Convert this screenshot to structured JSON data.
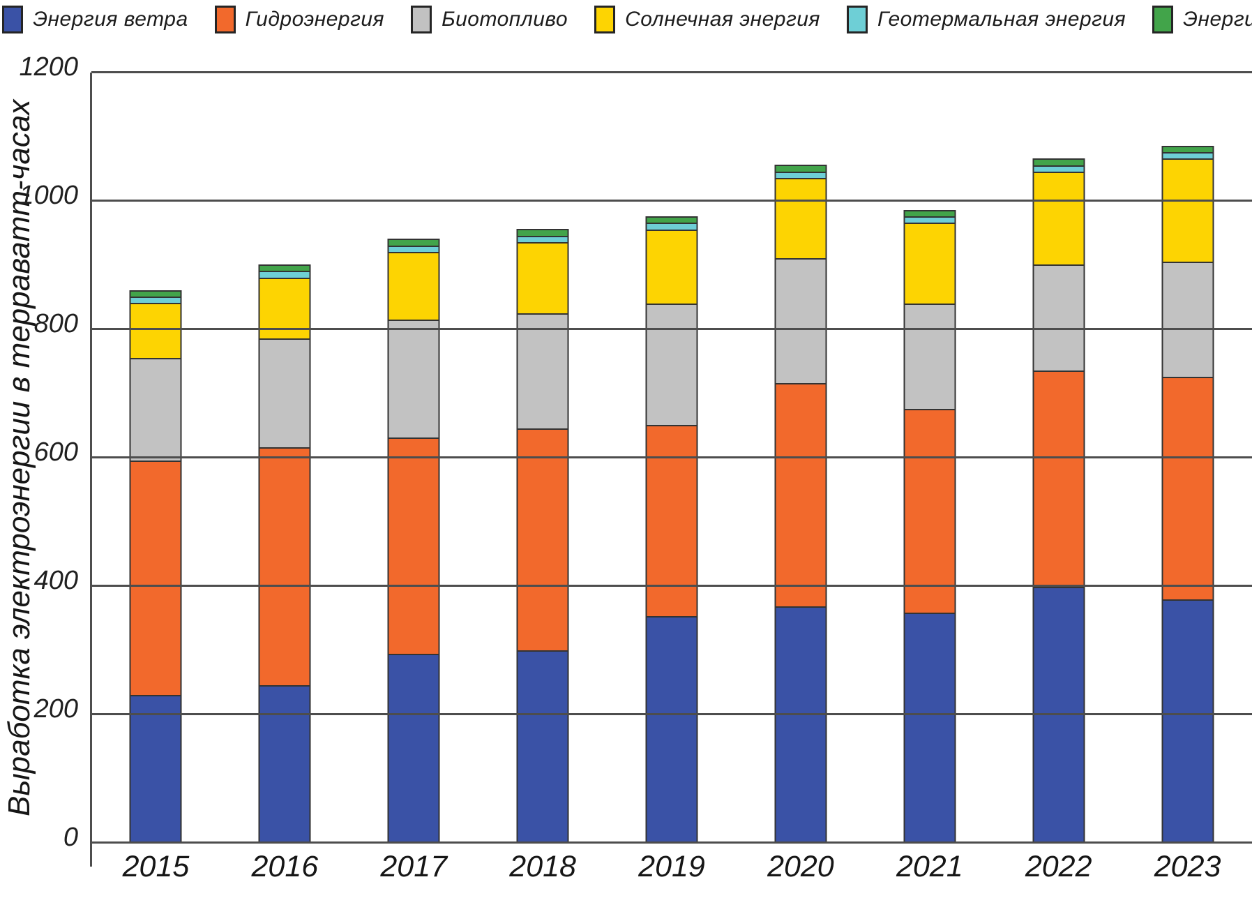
{
  "page": {
    "background": "#ffffff",
    "grid_color": "#4d4d4d",
    "bar_border_color": "#333333"
  },
  "chart_data": {
    "type": "bar",
    "stacked": true,
    "title": "",
    "xlabel": "",
    "ylabel": "Выработка электроэнергии в терраватт-часах",
    "ylim": [
      0,
      1200
    ],
    "yticks": [
      0,
      200,
      400,
      600,
      800,
      1000,
      1200
    ],
    "grid": true,
    "legend_position": "top",
    "categories": [
      "2015",
      "2016",
      "2017",
      "2018",
      "2019",
      "2020",
      "2021",
      "2022",
      "2023"
    ],
    "series": [
      {
        "name": "Энергия ветра",
        "color": "#3a52a6",
        "values": [
          230,
          245,
          295,
          300,
          355,
          370,
          360,
          400,
          380
        ]
      },
      {
        "name": "Гидроэнергия",
        "color": "#f2692c",
        "values": [
          370,
          375,
          340,
          350,
          300,
          350,
          320,
          340,
          350
        ]
      },
      {
        "name": "Биотопливо",
        "color": "#c2c2c2",
        "values": [
          160,
          170,
          185,
          180,
          190,
          195,
          165,
          165,
          180
        ]
      },
      {
        "name": "Солнечная энергия",
        "color": "#fdd402",
        "values": [
          85,
          95,
          105,
          110,
          115,
          125,
          125,
          145,
          160
        ]
      },
      {
        "name": "Геотермальная энергия",
        "color": "#6ecfd6",
        "values": [
          8,
          8,
          8,
          8,
          8,
          8,
          8,
          8,
          8
        ]
      },
      {
        "name": "Энергия океана",
        "color": "#42a44a",
        "values": [
          8,
          8,
          8,
          8,
          8,
          8,
          8,
          8,
          8
        ]
      }
    ]
  }
}
